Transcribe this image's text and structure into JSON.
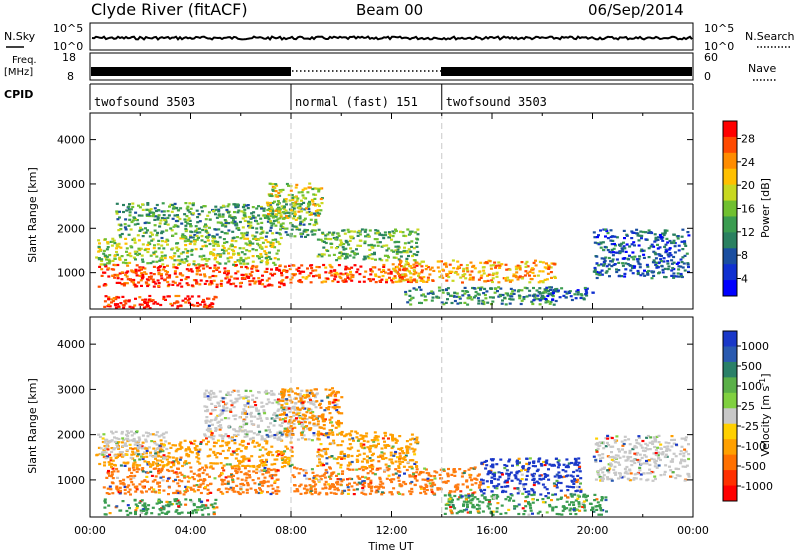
{
  "header": {
    "title": "Clyde River (fitACF)",
    "beam": "Beam 00",
    "date": "06/Sep/2014"
  },
  "status_rows": {
    "nsky_label": "N.Sky",
    "nsky_ticks": [
      "10^5",
      "10^0"
    ],
    "nsearch_label": "N.Search",
    "freq_label_line1": "Freq.",
    "freq_label_line2": "[MHz]",
    "freq_ticks": [
      "18",
      "8"
    ],
    "nave_label": "Nave",
    "nave_ticks": [
      "60",
      "0"
    ],
    "cpid_label": "CPID",
    "cpid_segments": [
      {
        "label": "twofsound 3503",
        "start_hour": 0,
        "end_hour": 8
      },
      {
        "label": "normal (fast) 151",
        "start_hour": 8,
        "end_hour": 14
      },
      {
        "label": "twofsound 3503",
        "start_hour": 14,
        "end_hour": 24
      }
    ]
  },
  "chart_data": [
    {
      "type": "heatmap",
      "name": "power-panel",
      "xlabel": "",
      "ylabel": "Slant Range [km]",
      "xlim": [
        0,
        24
      ],
      "ylim": [
        180,
        4600
      ],
      "yticks": [
        1000,
        2000,
        3000,
        4000
      ],
      "colorbar_label": "Power [dB]",
      "colorbar_ticks": [
        "28",
        "24",
        "20",
        "16",
        "12",
        "8",
        "4"
      ],
      "colorbar_colors": [
        "#ff0000",
        "#ff4a00",
        "#ff8c00",
        "#ffc000",
        "#c8d820",
        "#70c030",
        "#3a9c50",
        "#2a8060",
        "#1a4ea0",
        "#1030d0",
        "#0000ff"
      ],
      "scatter_bands": [
        {
          "x0": 0.5,
          "x1": 5.0,
          "y0": 180,
          "y1": 500,
          "level": 1.0
        },
        {
          "x0": 0.3,
          "x1": 8.0,
          "y0": 700,
          "y1": 1200,
          "level": 0.95
        },
        {
          "x0": 0.2,
          "x1": 7.5,
          "y0": 1200,
          "y1": 1800,
          "level": 0.55
        },
        {
          "x0": 1.0,
          "x1": 9.0,
          "y0": 1800,
          "y1": 2600,
          "level": 0.4
        },
        {
          "x0": 7.0,
          "x1": 9.2,
          "y0": 2200,
          "y1": 3050,
          "level": 0.6
        },
        {
          "x0": 8.0,
          "x1": 13.0,
          "y0": 800,
          "y1": 1200,
          "level": 0.9
        },
        {
          "x0": 9.0,
          "x1": 13.0,
          "y0": 1300,
          "y1": 2000,
          "level": 0.45
        },
        {
          "x0": 12.0,
          "x1": 18.5,
          "y0": 800,
          "y1": 1300,
          "level": 0.75
        },
        {
          "x0": 12.5,
          "x1": 18.5,
          "y0": 300,
          "y1": 700,
          "level": 0.35
        },
        {
          "x0": 17.5,
          "x1": 20.0,
          "y0": 400,
          "y1": 700,
          "level": 0.2
        },
        {
          "x0": 20.0,
          "x1": 23.8,
          "y0": 900,
          "y1": 2000,
          "level": 0.2
        }
      ]
    },
    {
      "type": "heatmap",
      "name": "velocity-panel",
      "xlabel": "Time UT",
      "ylabel": "Slant Range [km]",
      "xlim": [
        0,
        24
      ],
      "ylim": [
        180,
        4600
      ],
      "yticks": [
        1000,
        2000,
        3000,
        4000
      ],
      "xticks": [
        "00:00",
        "04:00",
        "08:00",
        "12:00",
        "16:00",
        "20:00",
        "00:00"
      ],
      "colorbar_label": "Velocity [m s",
      "colorbar_label_sup": "-1",
      "colorbar_label_end": "]",
      "colorbar_ticks": [
        "1000",
        "500",
        "100",
        "25",
        "-25",
        "-100",
        "-500",
        "-1000"
      ],
      "colorbar_colors": [
        "#1a38c8",
        "#2a5ab0",
        "#2a8068",
        "#5ab048",
        "#80d040",
        "#c8c8c8",
        "#ffd000",
        "#ffa000",
        "#ff7000",
        "#ff3000",
        "#ff0000"
      ],
      "scatter_bands": [
        {
          "x0": 0.5,
          "x1": 7.5,
          "y0": 700,
          "y1": 1300,
          "color": "#ff7a10"
        },
        {
          "x0": 0.3,
          "x1": 8.0,
          "y0": 1300,
          "y1": 1900,
          "color": "#ffa000"
        },
        {
          "x0": 0.2,
          "x1": 3.0,
          "y0": 1500,
          "y1": 2100,
          "color": "#c8c8c8"
        },
        {
          "x0": 0.5,
          "x1": 5.0,
          "y0": 250,
          "y1": 600,
          "color": "#3a9c50"
        },
        {
          "x0": 4.5,
          "x1": 9.0,
          "y0": 1900,
          "y1": 3000,
          "color": "#c8c8c8"
        },
        {
          "x0": 7.5,
          "x1": 10.0,
          "y0": 2000,
          "y1": 3050,
          "color": "#ff9000"
        },
        {
          "x0": 8.0,
          "x1": 15.5,
          "y0": 700,
          "y1": 1300,
          "color": "#ff7a10"
        },
        {
          "x0": 9.0,
          "x1": 13.0,
          "y0": 1300,
          "y1": 2100,
          "color": "#ffa000"
        },
        {
          "x0": 15.5,
          "x1": 19.5,
          "y0": 700,
          "y1": 1500,
          "color": "#1a38c8"
        },
        {
          "x0": 14.0,
          "x1": 20.5,
          "y0": 250,
          "y1": 700,
          "color": "#3a9c50"
        },
        {
          "x0": 20.0,
          "x1": 23.8,
          "y0": 1000,
          "y1": 2000,
          "color": "#c8c8c8"
        }
      ]
    }
  ]
}
